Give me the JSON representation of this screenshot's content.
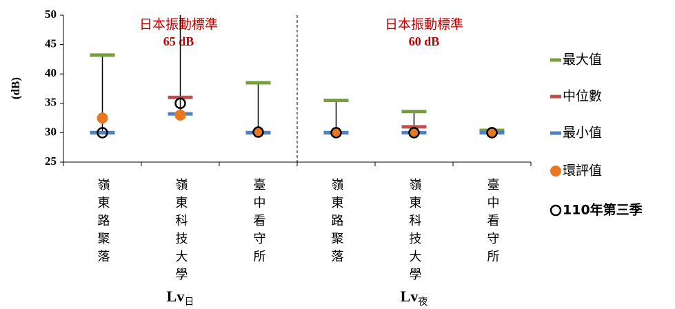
{
  "chart_data": {
    "type": "stock",
    "y_label": "(dB)",
    "categories": [
      "嶺東路聚落",
      "嶺東科技大學",
      "臺中看守所",
      "嶺東路聚落",
      "嶺東科技大學",
      "臺中看守所"
    ],
    "groups": [
      {
        "label": "Lv",
        "sub": "日"
      },
      {
        "label": "Lv",
        "sub": "夜"
      }
    ],
    "annotations": [
      "日本振動標準",
      "65 dB",
      "日本振動標準",
      "60 dB"
    ],
    "ylim": [
      25,
      50
    ],
    "yticks": [
      25,
      30,
      35,
      40,
      45,
      50
    ],
    "series": [
      {
        "name": "最大值",
        "color": "#77a03c",
        "values": [
          43.2,
          51,
          38.5,
          35.5,
          33.6,
          30.4
        ]
      },
      {
        "name": "中位數",
        "color": "#c0504d",
        "values": [
          30,
          36,
          30,
          30,
          31,
          30
        ]
      },
      {
        "name": "最小值",
        "color": "#4f81bd",
        "values": [
          30,
          33.2,
          30,
          30,
          30,
          30
        ]
      },
      {
        "name": "環評值",
        "color": "#e87722",
        "values": [
          32.5,
          33,
          30.1,
          30,
          30,
          30
        ]
      },
      {
        "name": "110年第三季",
        "color": "#000000",
        "values": [
          30,
          35,
          30.1,
          30,
          30,
          30
        ]
      }
    ]
  }
}
